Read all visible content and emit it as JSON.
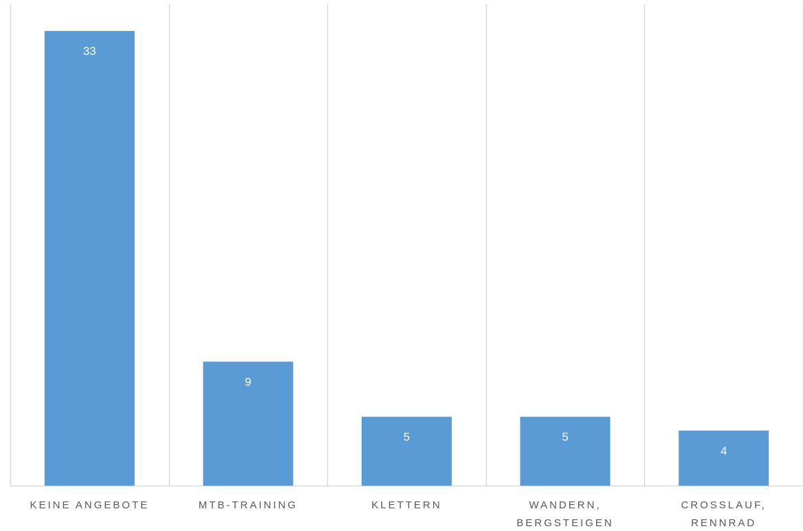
{
  "chart_data": {
    "type": "bar",
    "categories": [
      [
        "KEINE ANGEBOTE"
      ],
      [
        "MTB-TRAINING"
      ],
      [
        "KLETTERN"
      ],
      [
        "WANDERN,",
        "BERGSTEIGEN"
      ],
      [
        "CROSSLAUF,",
        "RENNRAD"
      ]
    ],
    "values": [
      33,
      9,
      5,
      5,
      4
    ],
    "data_labels": [
      "33",
      "9",
      "5",
      "5",
      "4"
    ],
    "ylim": [
      0,
      35
    ],
    "grid": "vertical separators",
    "bar_color": "#5B9BD5",
    "grid_color": "#D9D9D9",
    "label_color": "#595959"
  }
}
